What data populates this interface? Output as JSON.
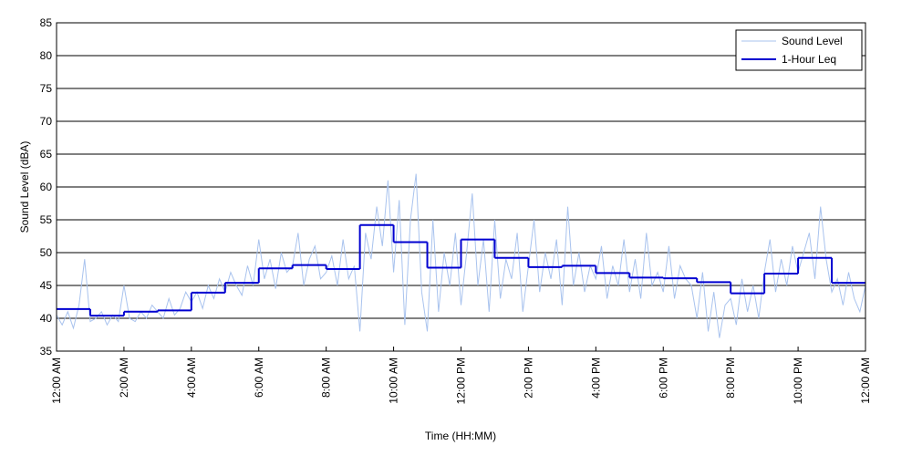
{
  "chart_data": {
    "type": "line",
    "xlabel": "Time (HH:MM)",
    "ylabel": "Sound Level (dBA)",
    "xlim": [
      0,
      1440
    ],
    "ylim": [
      35,
      85
    ],
    "yticks": [
      35,
      40,
      45,
      50,
      55,
      60,
      65,
      70,
      75,
      80,
      85
    ],
    "xticks": [
      {
        "value": 0,
        "label": "12:00 AM"
      },
      {
        "value": 120,
        "label": "2:00 AM"
      },
      {
        "value": 240,
        "label": "4:00 AM"
      },
      {
        "value": 360,
        "label": "6:00 AM"
      },
      {
        "value": 480,
        "label": "8:00 AM"
      },
      {
        "value": 600,
        "label": "10:00 AM"
      },
      {
        "value": 720,
        "label": "12:00 PM"
      },
      {
        "value": 840,
        "label": "2:00 PM"
      },
      {
        "value": 960,
        "label": "4:00 PM"
      },
      {
        "value": 1080,
        "label": "6:00 PM"
      },
      {
        "value": 1200,
        "label": "8:00 PM"
      },
      {
        "value": 1320,
        "label": "10:00 PM"
      },
      {
        "value": 1440,
        "label": "12:00 AM"
      }
    ],
    "grid": true,
    "legend": "upper right",
    "series": [
      {
        "name": "Sound Level",
        "color": "#a9c3ee",
        "x": [
          0,
          10,
          20,
          30,
          40,
          50,
          60,
          70,
          80,
          90,
          100,
          110,
          120,
          130,
          140,
          150,
          160,
          170,
          180,
          190,
          200,
          210,
          220,
          230,
          240,
          250,
          260,
          270,
          280,
          290,
          300,
          310,
          320,
          330,
          340,
          350,
          360,
          370,
          380,
          390,
          400,
          410,
          420,
          430,
          440,
          450,
          460,
          470,
          480,
          490,
          500,
          510,
          520,
          530,
          540,
          550,
          560,
          570,
          580,
          590,
          600,
          610,
          620,
          630,
          640,
          650,
          660,
          670,
          680,
          690,
          700,
          710,
          720,
          730,
          740,
          750,
          760,
          770,
          780,
          790,
          800,
          810,
          820,
          830,
          840,
          850,
          860,
          870,
          880,
          890,
          900,
          910,
          920,
          930,
          940,
          950,
          960,
          970,
          980,
          990,
          1000,
          1010,
          1020,
          1030,
          1040,
          1050,
          1060,
          1070,
          1080,
          1090,
          1100,
          1110,
          1120,
          1130,
          1140,
          1150,
          1160,
          1170,
          1180,
          1190,
          1200,
          1210,
          1220,
          1230,
          1240,
          1250,
          1260,
          1270,
          1280,
          1290,
          1300,
          1310,
          1320,
          1330,
          1340,
          1350,
          1360,
          1370,
          1380,
          1390,
          1400,
          1410,
          1420,
          1430,
          1440
        ],
        "values": [
          40.5,
          39,
          41,
          38.5,
          42,
          49,
          39.5,
          40,
          41,
          39,
          40.5,
          39.5,
          45,
          40,
          39.5,
          41,
          40,
          42,
          41,
          40,
          43,
          40.5,
          41.5,
          44,
          42.5,
          44,
          41.5,
          45,
          43,
          46,
          44,
          47,
          45,
          43.5,
          48,
          45,
          52,
          46,
          49,
          44.5,
          50,
          47,
          48,
          53,
          45,
          49,
          51,
          46,
          47,
          49.5,
          45,
          52,
          46,
          48,
          38,
          53,
          49,
          57,
          51,
          61,
          47,
          58,
          39,
          55,
          62,
          44,
          38,
          55,
          41,
          50,
          45,
          53,
          42,
          50,
          59,
          45,
          52,
          41,
          55,
          43,
          49,
          46,
          53,
          41,
          48,
          55,
          44,
          50,
          46,
          52,
          42,
          57,
          45,
          50,
          44,
          48,
          46,
          51,
          43,
          48,
          45,
          52,
          44,
          49,
          43,
          53,
          45,
          47,
          44,
          51,
          43,
          48,
          46,
          45,
          40,
          47,
          38,
          44,
          37,
          42,
          43,
          39,
          46,
          41,
          45,
          40,
          47,
          52,
          44,
          49,
          45,
          51,
          47,
          50,
          53,
          46,
          57,
          49,
          44,
          46,
          42,
          47,
          43,
          41,
          45
        ]
      },
      {
        "name": "1-Hour Leq",
        "color": "#0000d0",
        "step": "post",
        "x": [
          0,
          60,
          120,
          180,
          240,
          300,
          360,
          420,
          480,
          540,
          600,
          660,
          720,
          780,
          840,
          900,
          960,
          1020,
          1080,
          1140,
          1200,
          1260,
          1320,
          1380
        ],
        "values": [
          41.4,
          40.4,
          41.0,
          41.2,
          43.9,
          45.4,
          47.6,
          48.1,
          47.5,
          54.2,
          51.6,
          47.7,
          52.0,
          49.2,
          47.8,
          48.0,
          46.9,
          46.2,
          46.1,
          45.5,
          43.8,
          46.8,
          49.2,
          45.4
        ]
      }
    ]
  }
}
